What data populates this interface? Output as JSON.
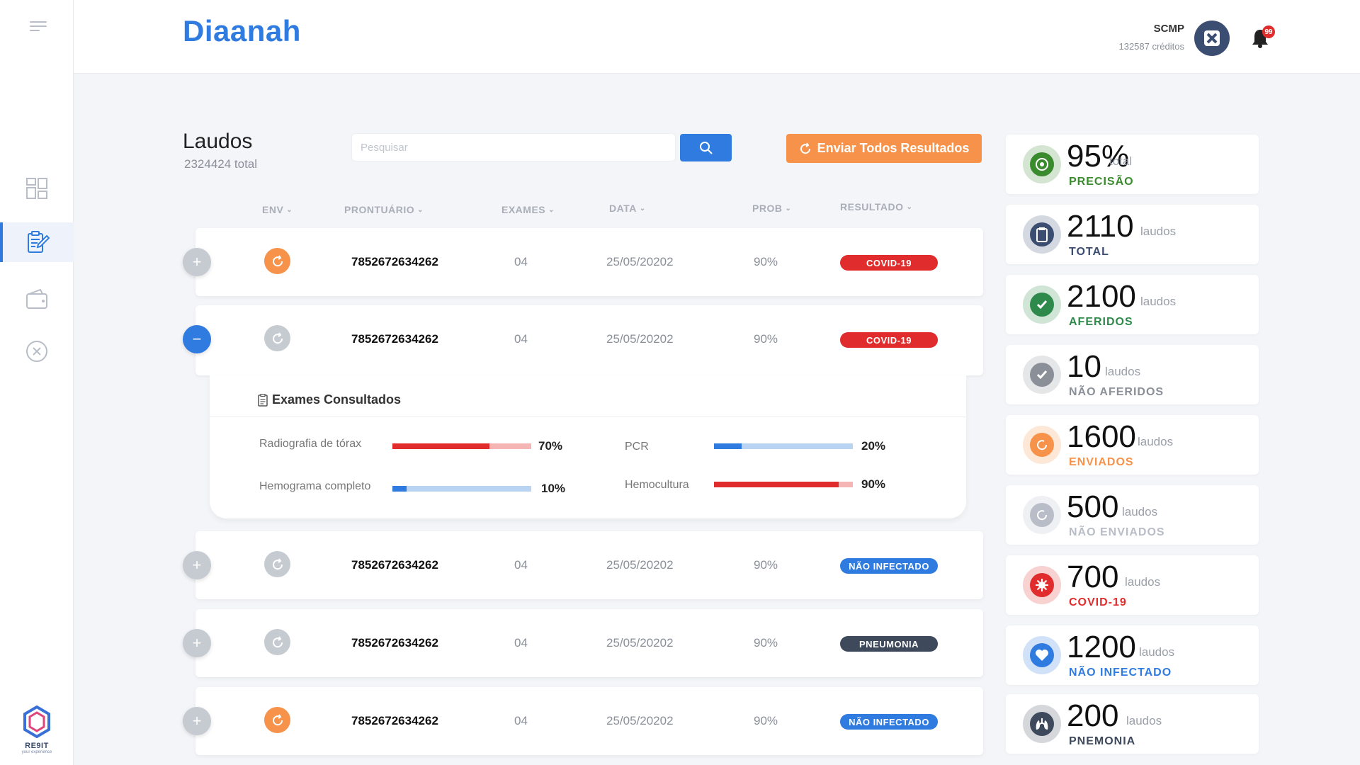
{
  "app": {
    "brand": "Diaanah"
  },
  "user": {
    "name": "SCMP",
    "credits": "132587 créditos",
    "notifications": "99"
  },
  "page": {
    "title": "Laudos",
    "subtitle": "2324424 total"
  },
  "search": {
    "placeholder": "Pesquisar",
    "value": ""
  },
  "actions": {
    "send_all": "Enviar Todos Resultados"
  },
  "columns": {
    "env": "ENV",
    "prontuario": "PRONTUÁRIO",
    "exames": "EXAMES",
    "data": "DATA",
    "prob": "PROB",
    "resultado": "RESULTADO"
  },
  "rows": [
    {
      "env": "sent",
      "prontuario": "7852672634262",
      "exames": "04",
      "data": "25/05/20202",
      "prob": "90%",
      "resultado": "COVID-19",
      "result_color": "#e02c2c",
      "expanded": false
    },
    {
      "env": "not-sent",
      "prontuario": "7852672634262",
      "exames": "04",
      "data": "25/05/20202",
      "prob": "90%",
      "resultado": "COVID-19",
      "result_color": "#e02c2c",
      "expanded": true
    },
    {
      "env": "not-sent",
      "prontuario": "7852672634262",
      "exames": "04",
      "data": "25/05/20202",
      "prob": "90%",
      "resultado": "NÃO INFECTADO",
      "result_color": "#2f7be0",
      "expanded": false
    },
    {
      "env": "not-sent",
      "prontuario": "7852672634262",
      "exames": "04",
      "data": "25/05/20202",
      "prob": "90%",
      "resultado": "PNEUMONIA",
      "result_color": "#3e4a5c",
      "expanded": false
    },
    {
      "env": "sent",
      "prontuario": "7852672634262",
      "exames": "04",
      "data": "25/05/20202",
      "prob": "90%",
      "resultado": "NÃO INFECTADO",
      "result_color": "#2f7be0",
      "expanded": false
    }
  ],
  "exams_panel": {
    "title": "Exames Consultados",
    "exams": [
      {
        "label": "Radiografia de tórax",
        "pct": "70%",
        "value": 0.7,
        "color": "red"
      },
      {
        "label": "PCR",
        "pct": "20%",
        "value": 0.2,
        "color": "blue"
      },
      {
        "label": "Hemograma completo",
        "pct": "10%",
        "value": 0.1,
        "color": "blue"
      },
      {
        "label": "Hemocultura",
        "pct": "90%",
        "value": 0.9,
        "color": "red"
      }
    ]
  },
  "stats": [
    {
      "value": "95%",
      "unit": "total",
      "label": "PRECISÃO",
      "color": "#3a8a2e",
      "icon": "target-icon"
    },
    {
      "value": "2110",
      "unit": "laudos",
      "label": "TOTAL",
      "color": "#3c4d72",
      "icon": "clipboard-icon"
    },
    {
      "value": "2100",
      "unit": "laudos",
      "label": "AFERIDOS",
      "color": "#2e8a4a",
      "icon": "check-icon"
    },
    {
      "value": "10",
      "unit": "laudos",
      "label": "NÃO AFERIDOS",
      "color": "#8a8f98",
      "icon": "check-icon"
    },
    {
      "value": "1600",
      "unit": "laudos",
      "label": "ENVIADOS",
      "color": "#f7924a",
      "icon": "refresh-icon"
    },
    {
      "value": "500",
      "unit": "laudos",
      "label": "NÃO ENVIADOS",
      "color": "#b8bdc7",
      "icon": "refresh-icon"
    },
    {
      "value": "700",
      "unit": "laudos",
      "label": "COVID-19",
      "color": "#e02c2c",
      "icon": "virus-icon"
    },
    {
      "value": "1200",
      "unit": "laudos",
      "label": "NÃO INFECTADO",
      "color": "#2f7be0",
      "icon": "heart-icon"
    },
    {
      "value": "200",
      "unit": "laudos",
      "label": "PNEMONIA",
      "color": "#3e4a5c",
      "icon": "lungs-icon"
    }
  ],
  "footer_logo": {
    "text": "RE9IT",
    "tagline": "your experience"
  }
}
